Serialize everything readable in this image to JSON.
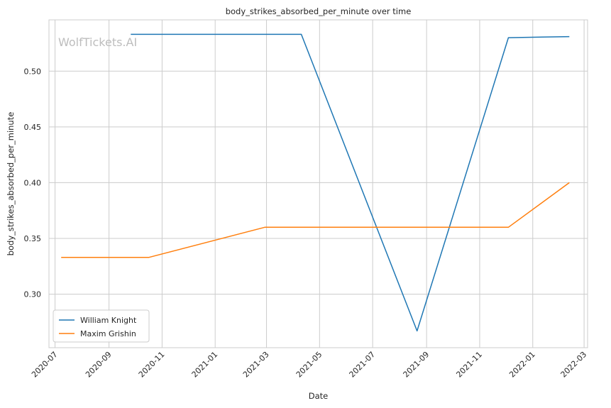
{
  "chart_data": {
    "type": "line",
    "title": "body_strikes_absorbed_per_minute over time",
    "xlabel": "Date",
    "ylabel": "body_strikes_absorbed_per_minute",
    "watermark": "WolfTickets.AI",
    "grid": true,
    "legend_position": "lower-left",
    "x_ticks": [
      "2020-07",
      "2020-09",
      "2020-11",
      "2021-01",
      "2021-03",
      "2021-05",
      "2021-07",
      "2021-09",
      "2021-11",
      "2022-01",
      "2022-03"
    ],
    "y_ticks": [
      "0.30",
      "0.35",
      "0.40",
      "0.45",
      "0.50"
    ],
    "xlim": [
      "2020-06-24",
      "2022-03-05"
    ],
    "ylim": [
      0.252,
      0.546
    ],
    "series": [
      {
        "name": "William Knight",
        "color": "#1f77b4",
        "x": [
          "2020-09-26",
          "2021-04-10",
          "2021-08-21",
          "2021-12-04",
          "2022-02-12"
        ],
        "y": [
          0.533,
          0.533,
          0.267,
          0.53,
          0.531
        ]
      },
      {
        "name": "Maxim Grishin",
        "color": "#ff7f0e",
        "x": [
          "2020-07-08",
          "2020-10-17",
          "2021-02-27",
          "2021-12-04",
          "2022-02-12"
        ],
        "y": [
          0.333,
          0.333,
          0.36,
          0.36,
          0.4
        ]
      }
    ]
  }
}
